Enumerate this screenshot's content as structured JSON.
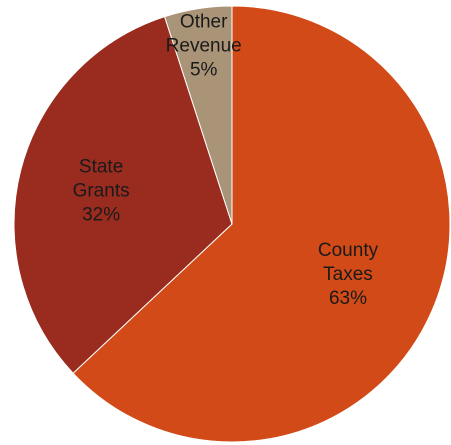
{
  "chart_data": {
    "type": "pie",
    "start_angle_deg": 0,
    "direction": "clockwise",
    "slices": [
      {
        "name": "County Taxes",
        "name_lines": [
          "County",
          "Taxes"
        ],
        "value": 63,
        "value_label": "63%",
        "color": "#d24a17"
      },
      {
        "name": "State Grants",
        "name_lines": [
          "State",
          "Grants"
        ],
        "value": 32,
        "value_label": "32%",
        "color": "#9a2c1f"
      },
      {
        "name": "Other Revenue",
        "name_lines": [
          "Other",
          "Revenue"
        ],
        "value": 5,
        "value_label": "5%",
        "color": "#a99478"
      }
    ]
  }
}
